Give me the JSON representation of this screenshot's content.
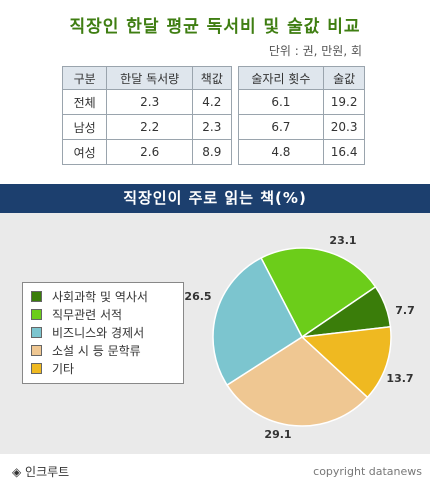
{
  "title": "직장인 한달 평균 독서비 및 술값 비교",
  "unit": "단위 : 권, 만원, 회",
  "table": {
    "headers": [
      "구분",
      "한달 독서량",
      "책값",
      "술자리 횟수",
      "술값"
    ],
    "rows": [
      [
        "전체",
        "2.3",
        "4.2",
        "6.1",
        "19.2"
      ],
      [
        "남성",
        "2.2",
        "2.3",
        "6.7",
        "20.3"
      ],
      [
        "여성",
        "2.6",
        "8.9",
        "4.8",
        "16.4"
      ]
    ]
  },
  "banner": "직장인이 주로 읽는 책(%)",
  "chart_data": {
    "type": "pie",
    "title": "직장인이 주로 읽는 책(%)",
    "legend_position": "left",
    "slices": [
      {
        "label": "사회과학 및 역사서",
        "value": 7.7,
        "color": "#3a7d0a"
      },
      {
        "label": "직무관련 서적",
        "value": 23.1,
        "color": "#6ccd1a"
      },
      {
        "label": "비즈니스와 경제서",
        "value": 26.5,
        "color": "#7cc5cf"
      },
      {
        "label": "소설 시 등 문학류",
        "value": 29.1,
        "color": "#efc792"
      },
      {
        "label": "기타",
        "value": 13.7,
        "color": "#efb921"
      }
    ]
  },
  "footer": {
    "source": "◈ 인크루트",
    "copyright": "copyright datanews"
  }
}
